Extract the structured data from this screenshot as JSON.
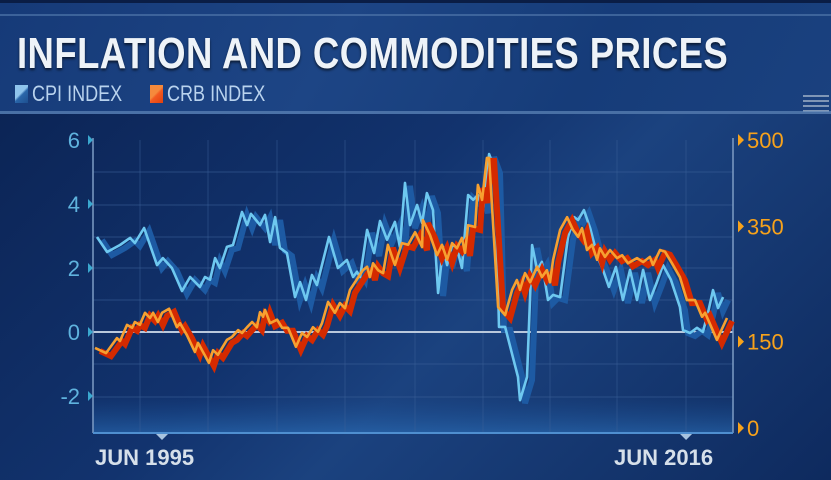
{
  "chart_data": {
    "type": "line",
    "title": "INFLATION AND COMMODITIES PRICES",
    "legend": {
      "placement": "top-left",
      "entries": [
        "CPI INDEX",
        "CRB INDEX"
      ]
    },
    "grid": true,
    "x_tick_labels": [
      "JUN 1995",
      "JUN 2016"
    ],
    "x_ticks": [
      1995.42,
      2016.42
    ],
    "y_left": {
      "ticks": [
        6,
        4,
        2,
        0,
        -2
      ],
      "tick_labels": [
        "6",
        "4",
        "2",
        "0",
        "-2"
      ],
      "range": [
        -3,
        6
      ]
    },
    "y_right": {
      "ticks": [
        500,
        350,
        150,
        0
      ],
      "tick_labels": [
        "500",
        "350",
        "150",
        "0"
      ],
      "range": [
        0,
        500
      ]
    },
    "series": [
      {
        "name": "CPI INDEX",
        "axis": "left",
        "color": "#6ec8f0",
        "shadow_color": "#1d5aa3",
        "x": [
          1995.42,
          1995.78,
          1996.24,
          1996.6,
          1996.77,
          1997.1,
          1997.56,
          1997.77,
          1998.09,
          1998.45,
          1998.74,
          1999.09,
          1999.27,
          1999.45,
          1999.63,
          1999.8,
          2000.05,
          2000.27,
          2000.59,
          2000.77,
          2000.91,
          2001.23,
          2001.41,
          2001.59,
          2001.77,
          2001.94,
          2002.19,
          2002.48,
          2002.66,
          2002.87,
          2003.08,
          2003.26,
          2003.69,
          2004.01,
          2004.33,
          2004.55,
          2004.69,
          2004.8,
          2005.05,
          2005.3,
          2005.51,
          2005.76,
          2006.04,
          2006.22,
          2006.4,
          2006.58,
          2006.83,
          2007.01,
          2007.18,
          2007.4,
          2007.58,
          2007.76,
          2007.9,
          2008.08,
          2008.25,
          2008.43,
          2008.65,
          2008.83,
          2009.0,
          2009.18,
          2009.4,
          2009.61,
          2009.68,
          2009.75,
          2009.97,
          2010.43,
          2010.5,
          2010.75,
          2010.93,
          2011.11,
          2011.28,
          2011.5,
          2011.68,
          2011.93,
          2012.21,
          2012.43,
          2012.57,
          2012.78,
          2013.0,
          2013.28,
          2013.46,
          2013.67,
          2013.92,
          2014.17,
          2014.42,
          2014.67,
          2014.89,
          2015.13,
          2015.38,
          2015.6,
          2015.88,
          2016.2,
          2016.31,
          2016.56,
          2016.81,
          2017.02,
          2017.2,
          2017.38,
          2017.56,
          2017.74
        ],
        "y": [
          2.97,
          2.5,
          2.72,
          2.94,
          2.78,
          3.25,
          2.09,
          2.31,
          2.0,
          1.28,
          1.72,
          1.41,
          1.72,
          1.63,
          2.31,
          2.0,
          2.66,
          2.72,
          3.75,
          3.34,
          3.69,
          3.34,
          3.66,
          2.81,
          3.59,
          2.63,
          2.47,
          1.09,
          1.56,
          1.0,
          1.78,
          1.47,
          2.97,
          2.0,
          2.25,
          1.72,
          1.88,
          1.72,
          3.19,
          2.47,
          3.47,
          2.88,
          3.44,
          2.66,
          4.66,
          3.34,
          3.97,
          3.41,
          4.34,
          3.81,
          1.22,
          2.66,
          2.09,
          2.72,
          2.63,
          2.0,
          4.28,
          4.13,
          4.28,
          3.81,
          5.56,
          5.06,
          2.78,
          0.16,
          0.16,
          -1.41,
          -2.13,
          -1.41,
          2.72,
          1.94,
          2.19,
          1.0,
          1.16,
          1.09,
          2.97,
          3.59,
          3.5,
          3.81,
          3.25,
          2.31,
          1.94,
          1.41,
          2.03,
          1.0,
          1.94,
          1.0,
          1.94,
          1.0,
          1.56,
          2.09,
          1.63,
          0.78,
          0.06,
          -0.03,
          0.13,
          0.0,
          0.59,
          1.31,
          0.75,
          1.09
        ]
      },
      {
        "name": "CRB INDEX",
        "axis": "right",
        "color": "#f7a030",
        "shadow_color": "#d42a00",
        "x": [
          1995.35,
          1995.74,
          1996.13,
          1996.24,
          1996.49,
          1996.67,
          1996.77,
          1996.95,
          1997.13,
          1997.31,
          1997.42,
          1997.59,
          1997.74,
          1997.99,
          1998.27,
          1998.38,
          1998.63,
          1998.91,
          1999.02,
          1999.41,
          1999.56,
          1999.73,
          2000.05,
          2000.23,
          2000.45,
          2000.59,
          2000.77,
          2000.95,
          2001.12,
          2001.23,
          2001.34,
          2001.41,
          2001.59,
          2001.84,
          2002.02,
          2002.23,
          2002.51,
          2002.73,
          2002.91,
          2003.12,
          2003.3,
          2003.44,
          2003.66,
          2003.9,
          2004.08,
          2004.26,
          2004.44,
          2004.9,
          2005.05,
          2005.15,
          2005.26,
          2005.44,
          2005.62,
          2005.79,
          2006.04,
          2006.29,
          2006.51,
          2006.76,
          2007.01,
          2007.04,
          2007.29,
          2007.54,
          2007.72,
          2007.9,
          2008.08,
          2008.25,
          2008.43,
          2008.54,
          2008.65,
          2008.9,
          2009.0,
          2009.15,
          2009.32,
          2009.4,
          2009.72,
          2009.97,
          2010.22,
          2010.39,
          2010.5,
          2010.68,
          2010.86,
          2011.11,
          2011.28,
          2011.46,
          2011.57,
          2011.68,
          2011.93,
          2012.18,
          2012.39,
          2012.57,
          2012.71,
          2012.89,
          2013.07,
          2013.25,
          2013.35,
          2013.53,
          2013.71,
          2013.96,
          2014.14,
          2014.35,
          2014.67,
          2014.89,
          2015.13,
          2015.24,
          2015.49,
          2015.67,
          2015.92,
          2016.2,
          2016.45,
          2016.74,
          2016.99,
          2017.1,
          2017.52,
          2017.88
        ],
        "y": [
          139,
          130,
          156,
          151,
          179,
          174,
          184,
          179,
          200,
          191,
          200,
          184,
          200,
          207,
          175,
          182,
          161,
          132,
          148,
          113,
          135,
          127,
          153,
          158,
          170,
          165,
          175,
          184,
          175,
          201,
          193,
          205,
          182,
          188,
          174,
          174,
          141,
          165,
          158,
          175,
          167,
          182,
          219,
          200,
          217,
          208,
          240,
          274,
          280,
          262,
          286,
          274,
          269,
          318,
          283,
          321,
          318,
          340,
          314,
          361,
          335,
          300,
          318,
          292,
          321,
          312,
          330,
          304,
          352,
          349,
          422,
          396,
          469,
          469,
          210,
          196,
          240,
          257,
          240,
          269,
          253,
          280,
          262,
          274,
          253,
          292,
          344,
          366,
          344,
          332,
          347,
          309,
          318,
          292,
          312,
          297,
          309,
          295,
          300,
          286,
          295,
          288,
          297,
          283,
          309,
          306,
          286,
          262,
          222,
          222,
          193,
          200,
          153,
          191
        ]
      }
    ]
  },
  "legend": {
    "cpi_label": "CPI INDEX",
    "crb_label": "CRB INDEX"
  },
  "header": {
    "title": "INFLATION AND COMMODITIES PRICES"
  }
}
